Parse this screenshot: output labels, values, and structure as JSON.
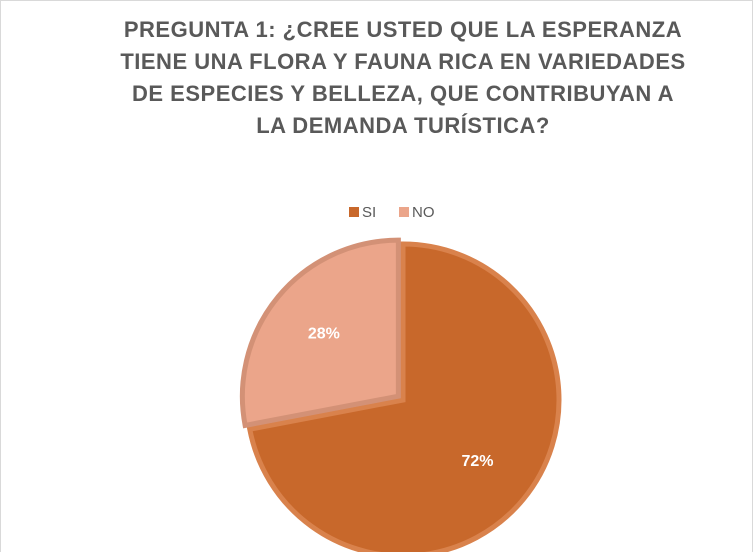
{
  "chart_data": {
    "type": "pie",
    "title": "PREGUNTA 1: ¿CREE USTED QUE LA ESPERANZA TIENE UNA FLORA Y FAUNA RICA EN VARIEDADES DE ESPECIES Y BELLEZA, QUE CONTRIBUYAN A LA DEMANDA TURÍSTICA?",
    "categories": [
      "SI",
      "NO"
    ],
    "values": [
      72,
      28
    ],
    "value_labels": [
      "72%",
      "28%"
    ],
    "colors": [
      "#c8682b",
      "#eba58a"
    ],
    "legend": "top"
  }
}
